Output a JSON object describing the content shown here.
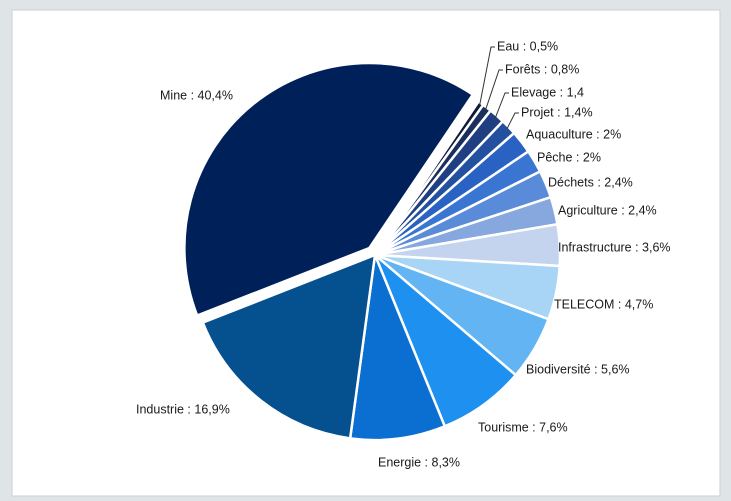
{
  "chart_data": {
    "type": "pie",
    "values": [
      0.5,
      0.8,
      1.4,
      1.4,
      2,
      2,
      2.4,
      2.4,
      3.6,
      4.7,
      5.6,
      7.6,
      8.3,
      16.9,
      40.4
    ],
    "value_labels": [
      "Eau : 0,5%",
      "Forêts : 0,8%",
      "Elevage : 1,4",
      "Projet : 1,4%",
      "Aquaculture : 2%",
      "Pêche : 2%",
      "Déchets : 2,4%",
      "Agriculture : 2,4%",
      "Infrastructure : 3,6%",
      "TELECOM  : 4,7%",
      "Biodiversité : 5,6%",
      "Tourisme : 7,6%",
      "Energie : 8,3%",
      "Industrie : 16,9%",
      "Mine : 40,4%"
    ],
    "colors": [
      "#0d1a3a",
      "#1b2f5e",
      "#1f3f82",
      "#2450a0",
      "#2a62c4",
      "#3a75d2",
      "#5a8bd8",
      "#86a8de",
      "#c5d4ee",
      "#a8d4f6",
      "#62b4f2",
      "#1e90f0",
      "#0a6fd0",
      "#05508f",
      "#00205a"
    ]
  }
}
